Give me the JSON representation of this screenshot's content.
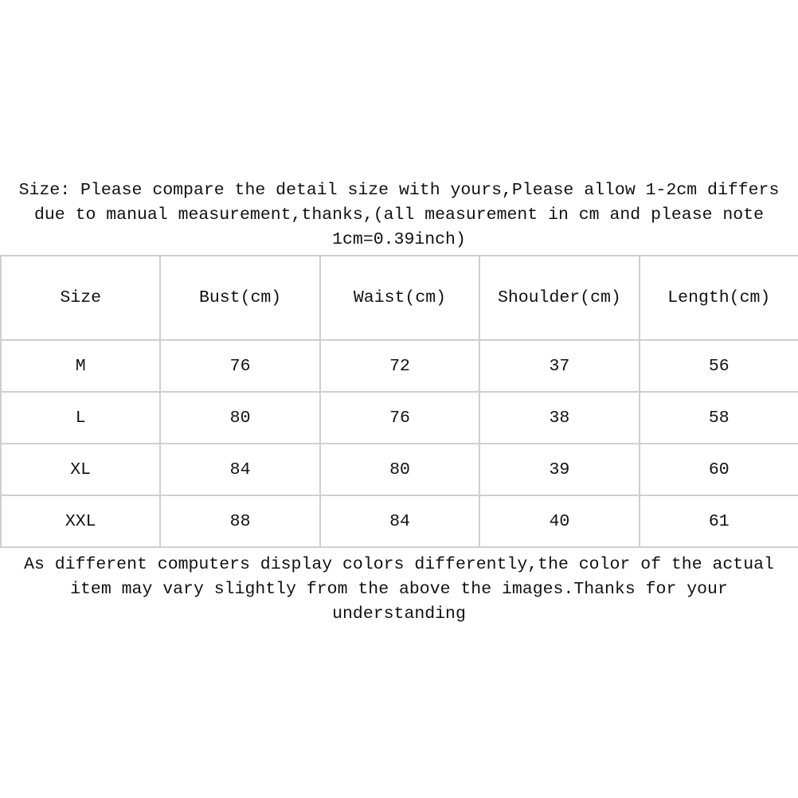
{
  "top_note": "Size: Please compare the detail size with yours,Please allow 1-2cm differs\ndue to manual measurement,thanks,(all measurement in cm and please note\n1cm=0.39inch)",
  "table": {
    "headers": [
      "Size",
      "Bust(cm)",
      "Waist(cm)",
      "Shoulder(cm)",
      "Length(cm)"
    ],
    "rows": [
      [
        "M",
        "76",
        "72",
        "37",
        "56"
      ],
      [
        "L",
        "80",
        "76",
        "38",
        "58"
      ],
      [
        "XL",
        "84",
        "80",
        "39",
        "60"
      ],
      [
        "XXL",
        "88",
        "84",
        "40",
        "61"
      ]
    ]
  },
  "bottom_note": "As different computers display colors differently,the color of the actual\nitem may vary slightly from the above the images.Thanks for your\nunderstanding"
}
